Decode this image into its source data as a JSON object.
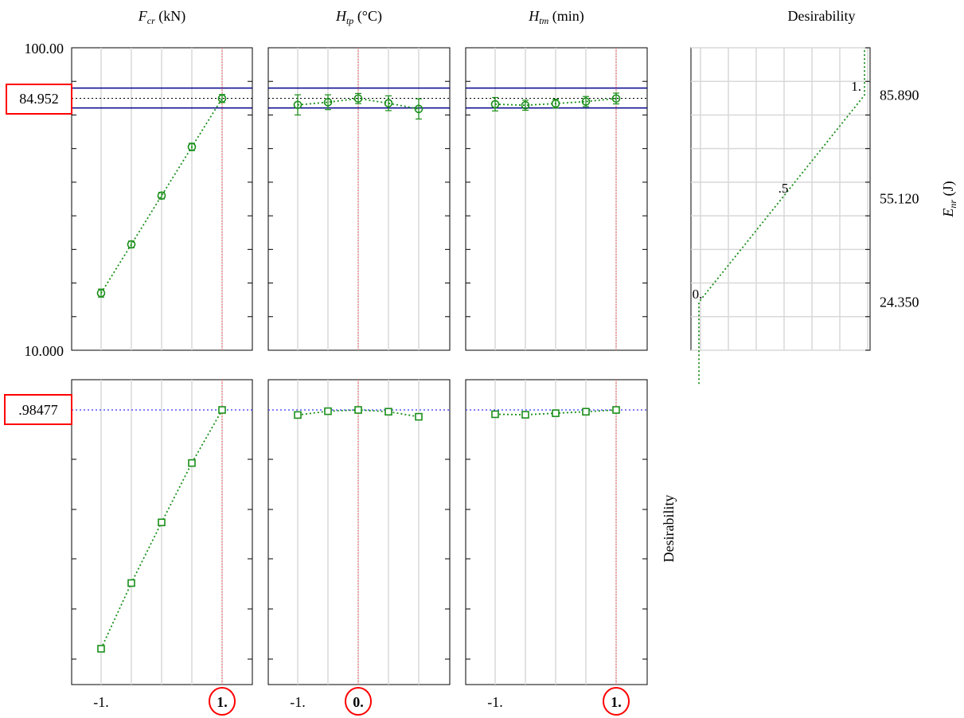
{
  "chart_data": {
    "type": "line",
    "title": "",
    "columns": [
      {
        "name": "F",
        "sub": "cr",
        "unit": " (kN)"
      },
      {
        "name": "H",
        "sub": "tp",
        "unit": " (°C)"
      },
      {
        "name": "H",
        "sub": "tm",
        "unit": " (min)"
      }
    ],
    "desirability_column_title": "Desirability",
    "x_levels": [
      -1,
      -0.5,
      0,
      0.5,
      1
    ],
    "x_tick_labels": [
      "-1.",
      "1.",
      "-1.",
      "0.",
      "-1.",
      "1."
    ],
    "x_current_labels": [
      "1.",
      "0.",
      "1."
    ],
    "x_current": [
      1,
      0,
      1
    ],
    "response": {
      "ylim": [
        10.0,
        100.0
      ],
      "ytick_labels": [
        "100.00",
        "10.000"
      ],
      "current_label": "84.952",
      "current_value": 84.952,
      "ci_low": 82.1,
      "ci_high": 88.0,
      "series": [
        {
          "values": [
            27.0,
            41.5,
            56.0,
            70.5,
            84.9
          ],
          "err": [
            1.2,
            1.0,
            1.0,
            1.1,
            1.2
          ]
        },
        {
          "values": [
            83.0,
            83.8,
            84.9,
            83.5,
            81.8
          ],
          "err": [
            3.0,
            2.2,
            1.5,
            2.2,
            3.0
          ]
        },
        {
          "values": [
            83.2,
            82.9,
            83.4,
            84.0,
            84.9
          ],
          "err": [
            2.0,
            1.5,
            1.3,
            1.5,
            1.6
          ]
        }
      ],
      "ylabel_name": "E",
      "ylabel_sub": "nr",
      "ylabel_unit": " (J)"
    },
    "desirability_function": {
      "right_tick_labels": [
        "85.890",
        "55.120",
        "24.350"
      ],
      "right_tick_values": [
        85.89,
        55.12,
        24.35
      ],
      "level_labels": [
        "1.",
        ".5",
        "0."
      ],
      "profile": [
        [
          0.0,
          0
        ],
        [
          0.0,
          24.35
        ],
        [
          1.0,
          85.89
        ],
        [
          1.0,
          100
        ]
      ]
    },
    "desirability": {
      "ylim": [
        0.0,
        1.0
      ],
      "ylabel": "Desirability",
      "current_label": ".98477",
      "current_value": 0.985,
      "series": [
        {
          "values": [
            0.04,
            0.3,
            0.54,
            0.775,
            0.985
          ]
        },
        {
          "values": [
            0.965,
            0.98,
            0.985,
            0.978,
            0.958
          ]
        },
        {
          "values": [
            0.968,
            0.966,
            0.972,
            0.978,
            0.985
          ]
        }
      ]
    },
    "colors": {
      "series": "#1a8f1a",
      "ci": "#00008b",
      "current_h": "#3333ff",
      "current_v": "#ff4444",
      "grid": "#d8d8d8",
      "highlight": "#ff0000"
    }
  }
}
